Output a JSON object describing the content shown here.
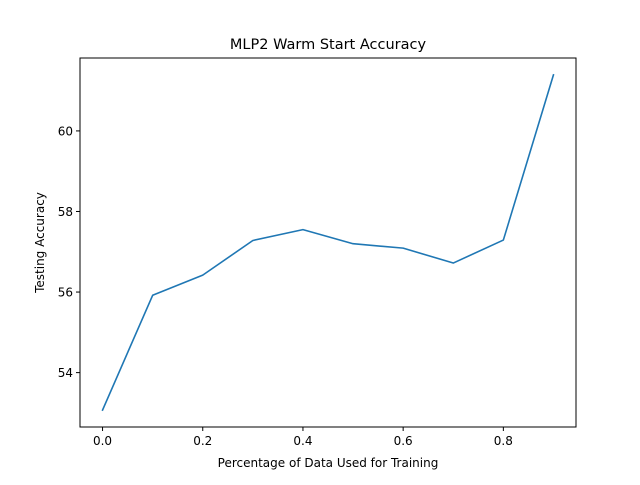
{
  "chart_data": {
    "type": "line",
    "title": "MLP2 Warm Start Accuracy",
    "xlabel": "Percentage of Data Used for Training",
    "ylabel": "Testing Accuracy",
    "x": [
      0.0,
      0.1,
      0.2,
      0.3,
      0.4,
      0.5,
      0.6,
      0.7,
      0.8,
      0.9
    ],
    "series": [
      {
        "values": [
          53.07,
          55.92,
          56.42,
          57.28,
          57.55,
          57.2,
          57.09,
          56.72,
          57.29,
          61.39
        ]
      }
    ],
    "xlim": [
      -0.045,
      0.945
    ],
    "ylim": [
      52.65,
      61.81
    ],
    "xticks": [
      0.0,
      0.2,
      0.4,
      0.6,
      0.8
    ],
    "xtick_labels": [
      "0.0",
      "0.2",
      "0.4",
      "0.6",
      "0.8"
    ],
    "yticks": [
      54,
      56,
      58,
      60
    ],
    "ytick_labels": [
      "54",
      "56",
      "58",
      "60"
    ],
    "grid": false,
    "legend": "none",
    "line_color": "#1f77b4"
  }
}
